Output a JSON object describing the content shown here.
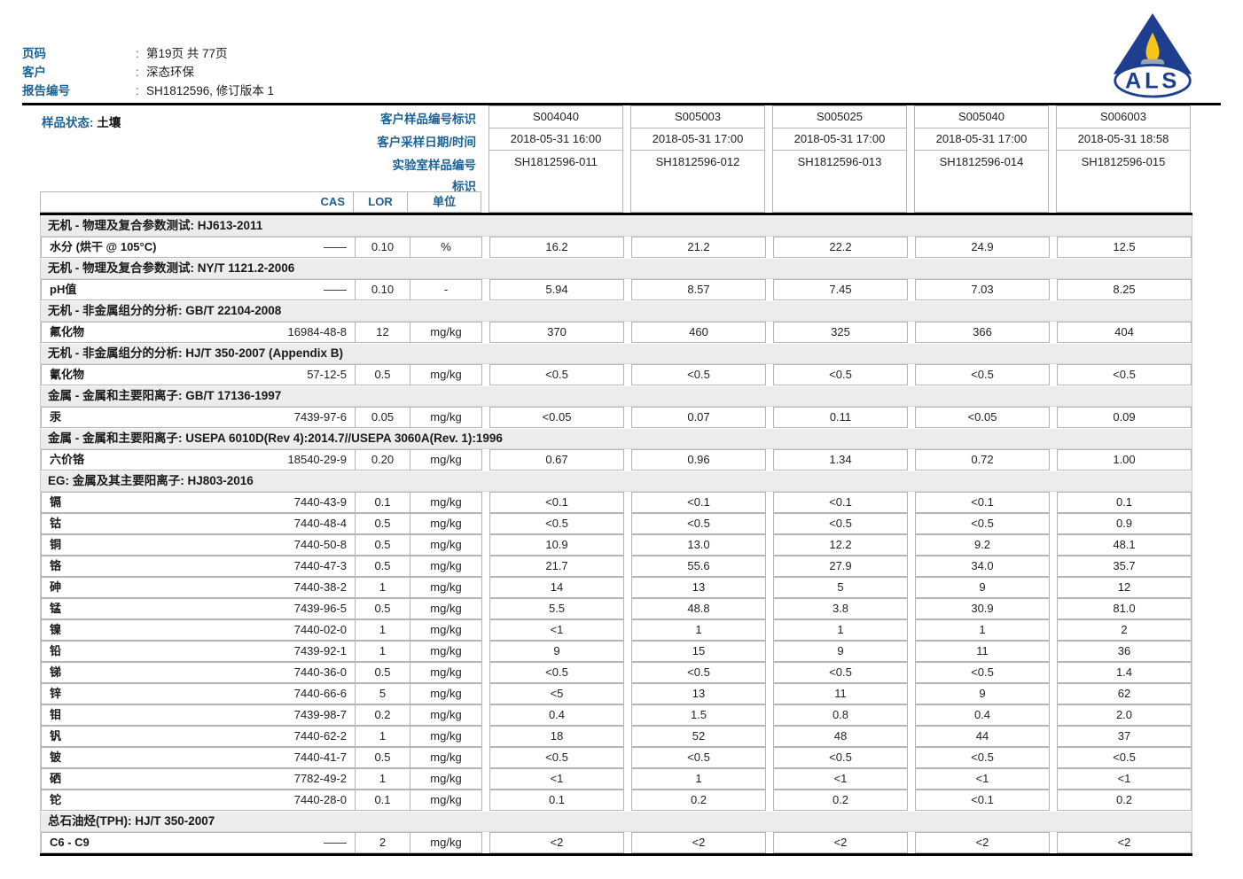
{
  "page_header": {
    "rows": [
      {
        "label": "页码",
        "colon": ":",
        "value": "第19页 共 77页"
      },
      {
        "label": "客户",
        "colon": ":",
        "value": "深态环保"
      },
      {
        "label": "报告编号",
        "colon": ":",
        "value": "SH1812596, 修订版本 1"
      }
    ],
    "logo_text": "ALS"
  },
  "sample_info": {
    "status_label": "样品状态:",
    "status_value": "土壤",
    "row_labels": [
      "客户样品编号标识",
      "客户采样日期/时间",
      "实验室样品编号",
      "标识"
    ],
    "columns": [
      {
        "id": "S004040",
        "datetime": "2018-05-31 16:00",
        "lab_id": "SH1812596-011"
      },
      {
        "id": "S005003",
        "datetime": "2018-05-31 17:00",
        "lab_id": "SH1812596-012"
      },
      {
        "id": "S005025",
        "datetime": "2018-05-31 17:00",
        "lab_id": "SH1812596-013"
      },
      {
        "id": "S005040",
        "datetime": "2018-05-31 17:00",
        "lab_id": "SH1812596-014"
      },
      {
        "id": "S006003",
        "datetime": "2018-05-31 18:58",
        "lab_id": "SH1812596-015"
      }
    ]
  },
  "table": {
    "headers": {
      "cas": "CAS",
      "lor": "LOR",
      "unit": "单位"
    },
    "rows": [
      {
        "type": "section",
        "label": "无机 - 物理及复合参数测试: HJ613-2011"
      },
      {
        "type": "data",
        "param": "水分 (烘干 @ 105°C)",
        "cas": "——",
        "lor": "0.10",
        "unit": "%",
        "values": [
          "16.2",
          "21.2",
          "22.2",
          "24.9",
          "12.5"
        ]
      },
      {
        "type": "section",
        "label": "无机 - 物理及复合参数测试: NY/T 1121.2-2006"
      },
      {
        "type": "data",
        "param": "pH值",
        "cas": "——",
        "lor": "0.10",
        "unit": "-",
        "values": [
          "5.94",
          "8.57",
          "7.45",
          "7.03",
          "8.25"
        ]
      },
      {
        "type": "section",
        "label": "无机 - 非金属组分的分析: GB/T 22104-2008"
      },
      {
        "type": "data",
        "param": "氟化物",
        "cas": "16984-48-8",
        "lor": "12",
        "unit": "mg/kg",
        "values": [
          "370",
          "460",
          "325",
          "366",
          "404"
        ]
      },
      {
        "type": "section",
        "label": "无机 - 非金属组分的分析: HJ/T 350-2007 (Appendix B)"
      },
      {
        "type": "data",
        "param": "氰化物",
        "cas": "57-12-5",
        "lor": "0.5",
        "unit": "mg/kg",
        "values": [
          "<0.5",
          "<0.5",
          "<0.5",
          "<0.5",
          "<0.5"
        ]
      },
      {
        "type": "section",
        "label": "金属 - 金属和主要阳离子: GB/T 17136-1997"
      },
      {
        "type": "data",
        "param": "汞",
        "cas": "7439-97-6",
        "lor": "0.05",
        "unit": "mg/kg",
        "values": [
          "<0.05",
          "0.07",
          "0.11",
          "<0.05",
          "0.09"
        ]
      },
      {
        "type": "section",
        "label": "金属 - 金属和主要阳离子: USEPA 6010D(Rev 4):2014.7//USEPA 3060A(Rev. 1):1996"
      },
      {
        "type": "data",
        "param": "六价铬",
        "cas": "18540-29-9",
        "lor": "0.20",
        "unit": "mg/kg",
        "values": [
          "0.67",
          "0.96",
          "1.34",
          "0.72",
          "1.00"
        ]
      },
      {
        "type": "section",
        "label": "EG: 金属及其主要阳离子: HJ803-2016"
      },
      {
        "type": "data",
        "param": "镉",
        "cas": "7440-43-9",
        "lor": "0.1",
        "unit": "mg/kg",
        "values": [
          "<0.1",
          "<0.1",
          "<0.1",
          "<0.1",
          "0.1"
        ]
      },
      {
        "type": "data",
        "param": "钴",
        "cas": "7440-48-4",
        "lor": "0.5",
        "unit": "mg/kg",
        "values": [
          "<0.5",
          "<0.5",
          "<0.5",
          "<0.5",
          "0.9"
        ]
      },
      {
        "type": "data",
        "param": "铜",
        "cas": "7440-50-8",
        "lor": "0.5",
        "unit": "mg/kg",
        "values": [
          "10.9",
          "13.0",
          "12.2",
          "9.2",
          "48.1"
        ]
      },
      {
        "type": "data",
        "param": "铬",
        "cas": "7440-47-3",
        "lor": "0.5",
        "unit": "mg/kg",
        "values": [
          "21.7",
          "55.6",
          "27.9",
          "34.0",
          "35.7"
        ]
      },
      {
        "type": "data",
        "param": "砷",
        "cas": "7440-38-2",
        "lor": "1",
        "unit": "mg/kg",
        "values": [
          "14",
          "13",
          "5",
          "9",
          "12"
        ]
      },
      {
        "type": "data",
        "param": "锰",
        "cas": "7439-96-5",
        "lor": "0.5",
        "unit": "mg/kg",
        "values": [
          "5.5",
          "48.8",
          "3.8",
          "30.9",
          "81.0"
        ]
      },
      {
        "type": "data",
        "param": "镍",
        "cas": "7440-02-0",
        "lor": "1",
        "unit": "mg/kg",
        "values": [
          "<1",
          "1",
          "1",
          "1",
          "2"
        ]
      },
      {
        "type": "data",
        "param": "铅",
        "cas": "7439-92-1",
        "lor": "1",
        "unit": "mg/kg",
        "values": [
          "9",
          "15",
          "9",
          "11",
          "36"
        ]
      },
      {
        "type": "data",
        "param": "锑",
        "cas": "7440-36-0",
        "lor": "0.5",
        "unit": "mg/kg",
        "values": [
          "<0.5",
          "<0.5",
          "<0.5",
          "<0.5",
          "1.4"
        ]
      },
      {
        "type": "data",
        "param": "锌",
        "cas": "7440-66-6",
        "lor": "5",
        "unit": "mg/kg",
        "values": [
          "<5",
          "13",
          "11",
          "9",
          "62"
        ]
      },
      {
        "type": "data",
        "param": "钼",
        "cas": "7439-98-7",
        "lor": "0.2",
        "unit": "mg/kg",
        "values": [
          "0.4",
          "1.5",
          "0.8",
          "0.4",
          "2.0"
        ]
      },
      {
        "type": "data",
        "param": "钒",
        "cas": "7440-62-2",
        "lor": "1",
        "unit": "mg/kg",
        "values": [
          "18",
          "52",
          "48",
          "44",
          "37"
        ]
      },
      {
        "type": "data",
        "param": "铍",
        "cas": "7440-41-7",
        "lor": "0.5",
        "unit": "mg/kg",
        "values": [
          "<0.5",
          "<0.5",
          "<0.5",
          "<0.5",
          "<0.5"
        ]
      },
      {
        "type": "data",
        "param": "硒",
        "cas": "7782-49-2",
        "lor": "1",
        "unit": "mg/kg",
        "values": [
          "<1",
          "1",
          "<1",
          "<1",
          "<1"
        ]
      },
      {
        "type": "data",
        "param": "铊",
        "cas": "7440-28-0",
        "lor": "0.1",
        "unit": "mg/kg",
        "values": [
          "0.1",
          "0.2",
          "0.2",
          "<0.1",
          "0.2"
        ]
      },
      {
        "type": "section",
        "label": "总石油烃(TPH): HJ/T 350-2007"
      },
      {
        "type": "data",
        "param": "C6 - C9",
        "cas": "——",
        "lor": "2",
        "unit": "mg/kg",
        "values": [
          "<2",
          "<2",
          "<2",
          "<2",
          "<2"
        ]
      }
    ]
  },
  "colors": {
    "label_blue": "#1b6394",
    "logo_navy": "#1e3f8f",
    "flame_yellow": "#f5c518",
    "section_gray": "#ececec"
  }
}
